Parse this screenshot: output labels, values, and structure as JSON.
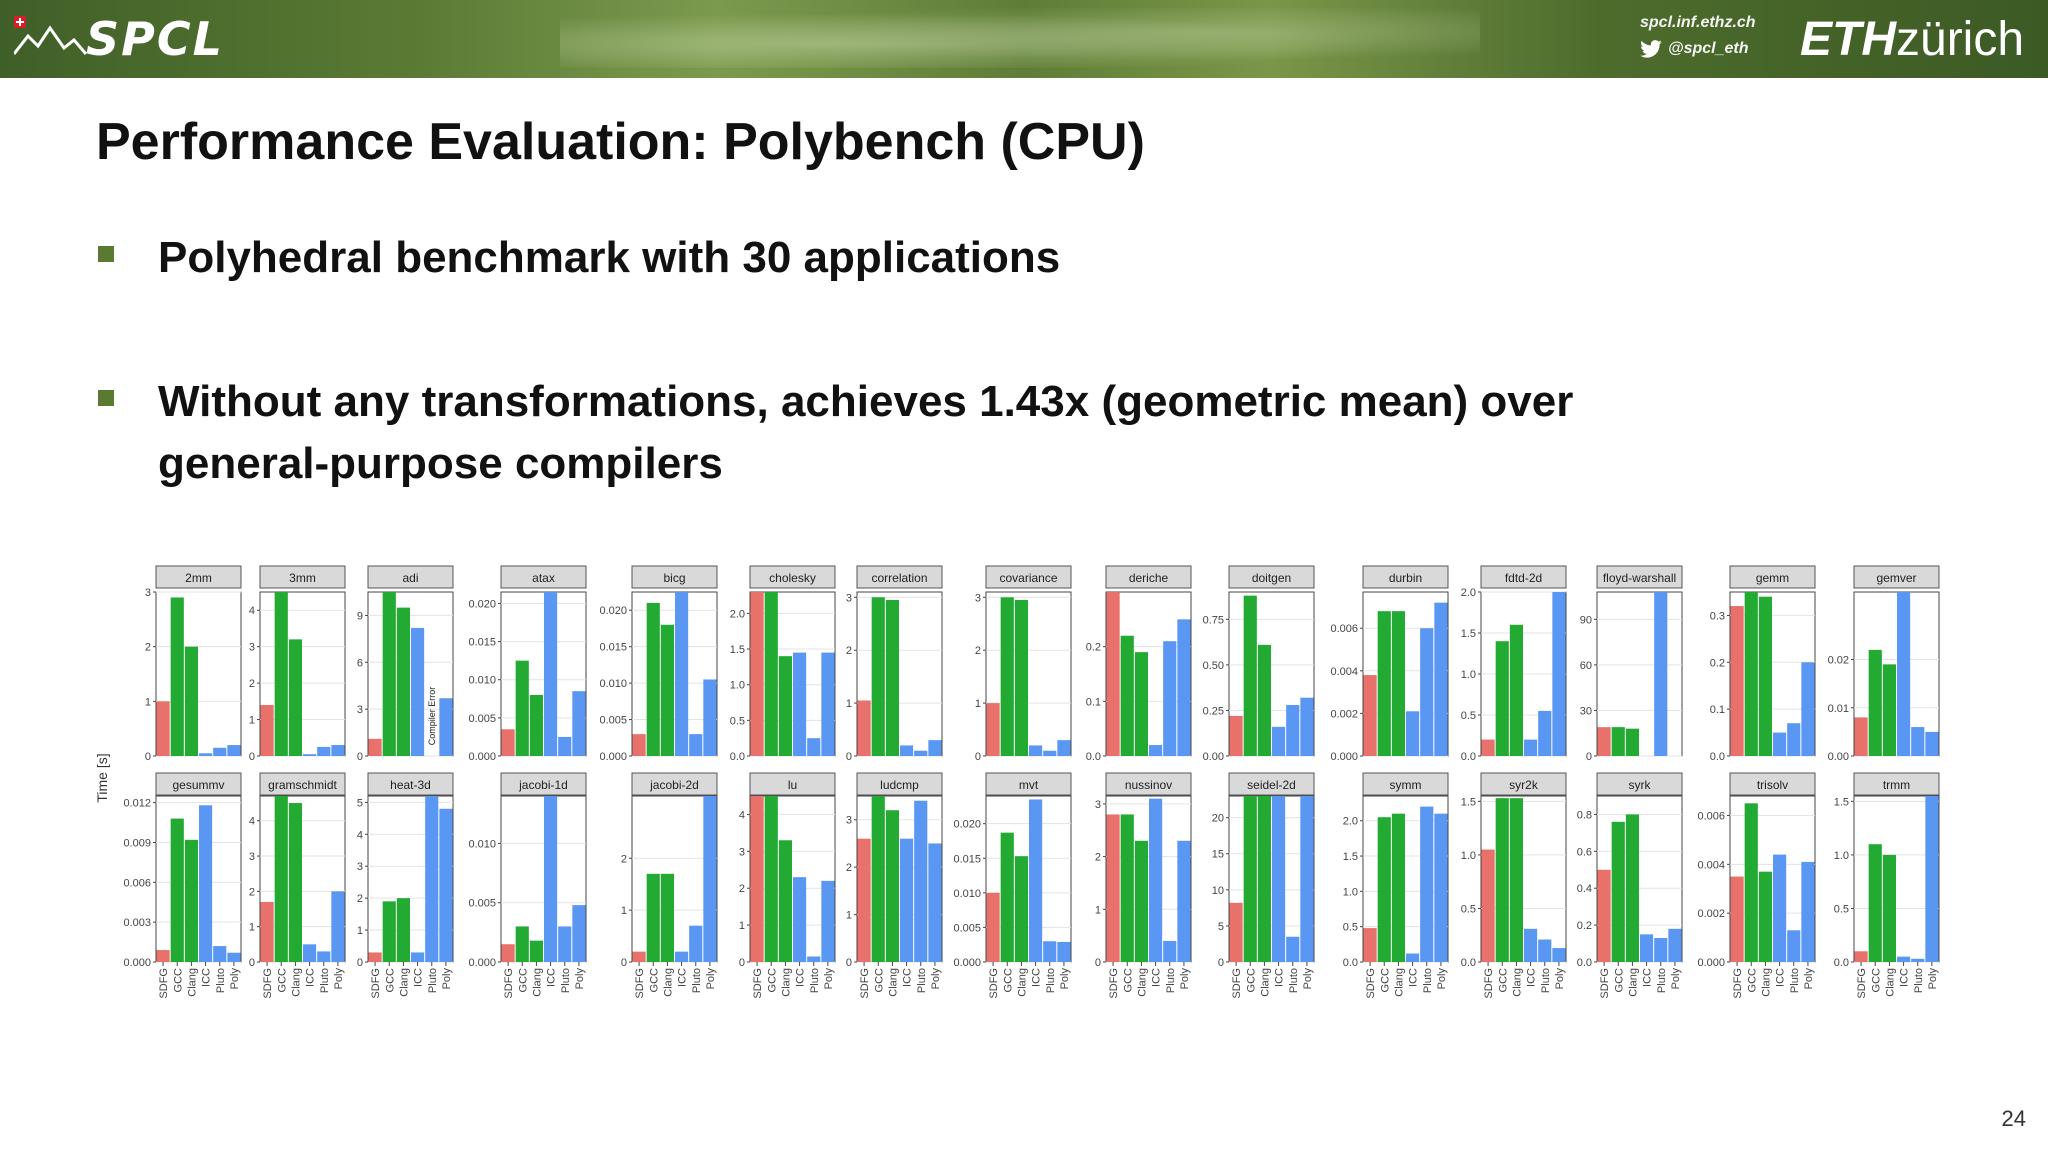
{
  "header": {
    "logo": "SPCL",
    "site_url": "spcl.inf.ethz.ch",
    "twitter": "@spcl_eth",
    "eth_bold": "ETH",
    "eth_light": "zürich"
  },
  "slide": {
    "title": "Performance Evaluation: Polybench (CPU)",
    "bullets": [
      "Polyhedral benchmark with 30 applications",
      "Without any transformations, achieves 1.43x (geometric mean) over",
      "general-purpose compilers"
    ],
    "page_number": "24"
  },
  "chart_data": {
    "type": "bar",
    "ylabel": "Time [s]",
    "categories": [
      "SDFG",
      "GCC",
      "Clang",
      "ICC",
      "Pluto",
      "Poly"
    ],
    "colors": {
      "SDFG": "#e8726b",
      "GCC": "#22aa33",
      "Clang": "#22aa33",
      "ICC": "#5a97f2",
      "Pluto": "#5a97f2",
      "Poly": "#5a97f2"
    },
    "note_text": "Compiler Error",
    "panels": [
      {
        "name": "2mm",
        "ylim": [
          0,
          3
        ],
        "ticks": [
          "0",
          "1",
          "2",
          "3"
        ],
        "values": [
          1.0,
          2.9,
          2.0,
          0.05,
          0.15,
          0.2
        ]
      },
      {
        "name": "3mm",
        "ylim": [
          0,
          4.5
        ],
        "ticks": [
          "0",
          "1",
          "2",
          "3",
          "4"
        ],
        "values": [
          1.4,
          4.6,
          3.2,
          0.05,
          0.25,
          0.3
        ]
      },
      {
        "name": "adi",
        "ylim": [
          0,
          10.5
        ],
        "ticks": [
          "0",
          "3",
          "6",
          "9"
        ],
        "values": [
          1.1,
          10.8,
          9.5,
          8.2,
          null,
          3.7
        ],
        "note_index": 4
      },
      {
        "name": "atax",
        "ylim": [
          0,
          0.0215
        ],
        "ticks": [
          "0.000",
          "0.005",
          "0.010",
          "0.015",
          "0.020"
        ],
        "values": [
          0.0035,
          0.0125,
          0.008,
          0.0215,
          0.0025,
          0.0085
        ]
      },
      {
        "name": "bicg",
        "ylim": [
          0,
          0.0225
        ],
        "ticks": [
          "0.000",
          "0.005",
          "0.010",
          "0.015",
          "0.020"
        ],
        "values": [
          0.003,
          0.021,
          0.018,
          0.0225,
          0.003,
          0.0105
        ]
      },
      {
        "name": "cholesky",
        "ylim": [
          0,
          2.3
        ],
        "ticks": [
          "0.0",
          "0.5",
          "1.0",
          "1.5",
          "2.0"
        ],
        "values": [
          2.3,
          2.3,
          1.4,
          1.45,
          0.25,
          1.45
        ]
      },
      {
        "name": "correlation",
        "ylim": [
          0,
          3.1
        ],
        "ticks": [
          "0",
          "1",
          "2",
          "3"
        ],
        "values": [
          1.05,
          3.0,
          2.95,
          0.2,
          0.1,
          0.3
        ]
      },
      {
        "name": "covariance",
        "ylim": [
          0,
          3.1
        ],
        "ticks": [
          "0",
          "1",
          "2",
          "3"
        ],
        "values": [
          1.0,
          3.0,
          2.95,
          0.2,
          0.1,
          0.3
        ]
      },
      {
        "name": "deriche",
        "ylim": [
          0,
          0.3
        ],
        "ticks": [
          "0.0",
          "0.1",
          "0.2"
        ],
        "values": [
          0.3,
          0.22,
          0.19,
          0.02,
          0.21,
          0.25
        ]
      },
      {
        "name": "doitgen",
        "ylim": [
          0,
          0.9
        ],
        "ticks": [
          "0.00",
          "0.25",
          "0.50",
          "0.75"
        ],
        "values": [
          0.22,
          0.88,
          0.61,
          0.16,
          0.28,
          0.32
        ]
      },
      {
        "name": "durbin",
        "ylim": [
          0,
          0.0077
        ],
        "ticks": [
          "0.000",
          "0.002",
          "0.004",
          "0.006"
        ],
        "values": [
          0.0038,
          0.0068,
          0.0068,
          0.0021,
          0.006,
          0.0072
        ]
      },
      {
        "name": "fdtd-2d",
        "ylim": [
          0,
          2.0
        ],
        "ticks": [
          "0.0",
          "0.5",
          "1.0",
          "1.5",
          "2.0"
        ],
        "values": [
          0.2,
          1.4,
          1.6,
          0.2,
          0.55,
          2.05
        ]
      },
      {
        "name": "floyd-warshall",
        "ylim": [
          0,
          108
        ],
        "ticks": [
          "0",
          "30",
          "60",
          "90"
        ],
        "values": [
          19,
          19,
          18,
          0,
          108,
          0
        ]
      },
      {
        "name": "gemm",
        "ylim": [
          0,
          0.35
        ],
        "ticks": [
          "0.0",
          "0.1",
          "0.2",
          "0.3"
        ],
        "values": [
          0.32,
          0.35,
          0.34,
          0.05,
          0.07,
          0.2
        ]
      },
      {
        "name": "gemver",
        "ylim": [
          0,
          0.034
        ],
        "ticks": [
          "0.00",
          "0.01",
          "0.02"
        ],
        "values": [
          0.008,
          0.022,
          0.019,
          0.034,
          0.006,
          0.005
        ]
      },
      {
        "name": "gesummv",
        "ylim": [
          0,
          0.0125
        ],
        "ticks": [
          "0.000",
          "0.003",
          "0.006",
          "0.009",
          "0.012"
        ],
        "values": [
          0.0009,
          0.0108,
          0.0092,
          0.0118,
          0.0012,
          0.0007
        ]
      },
      {
        "name": "gramschmidt",
        "ylim": [
          0,
          4.7
        ],
        "ticks": [
          "0",
          "1",
          "2",
          "3",
          "4"
        ],
        "values": [
          1.7,
          4.7,
          4.5,
          0.5,
          0.3,
          2.0
        ]
      },
      {
        "name": "heat-3d",
        "ylim": [
          0,
          5.2
        ],
        "ticks": [
          "0",
          "1",
          "2",
          "3",
          "4",
          "5"
        ],
        "values": [
          0.3,
          1.9,
          2.0,
          0.3,
          5.2,
          4.8
        ]
      },
      {
        "name": "jacobi-1d",
        "ylim": [
          0,
          0.014
        ],
        "ticks": [
          "0.000",
          "0.005",
          "0.010"
        ],
        "values": [
          0.0015,
          0.003,
          0.0018,
          0.014,
          0.003,
          0.0048
        ]
      },
      {
        "name": "jacobi-2d",
        "ylim": [
          0,
          3.2
        ],
        "ticks": [
          "0",
          "1",
          "2"
        ],
        "values": [
          0.2,
          1.7,
          1.7,
          0.2,
          0.7,
          3.2
        ]
      },
      {
        "name": "lu",
        "ylim": [
          0,
          4.5
        ],
        "ticks": [
          "0",
          "1",
          "2",
          "3",
          "4"
        ],
        "values": [
          4.5,
          4.5,
          3.3,
          2.3,
          0.15,
          2.2
        ]
      },
      {
        "name": "ludcmp",
        "ylim": [
          0,
          3.5
        ],
        "ticks": [
          "0",
          "1",
          "2",
          "3"
        ],
        "values": [
          2.6,
          3.5,
          3.2,
          2.6,
          3.4,
          2.5
        ]
      },
      {
        "name": "mvt",
        "ylim": [
          0,
          0.024
        ],
        "ticks": [
          "0.000",
          "0.005",
          "0.010",
          "0.015",
          "0.020"
        ],
        "values": [
          0.01,
          0.0187,
          0.0153,
          0.0235,
          0.003,
          0.0029
        ]
      },
      {
        "name": "nussinov",
        "ylim": [
          0,
          3.15
        ],
        "ticks": [
          "0",
          "1",
          "2",
          "3"
        ],
        "values": [
          2.8,
          2.8,
          2.3,
          3.1,
          0.4,
          2.3
        ]
      },
      {
        "name": "seidel-2d",
        "ylim": [
          0,
          23
        ],
        "ticks": [
          "0",
          "5",
          "10",
          "15",
          "20"
        ],
        "values": [
          8.2,
          23,
          23,
          23,
          3.5,
          23
        ]
      },
      {
        "name": "symm",
        "ylim": [
          0,
          2.35
        ],
        "ticks": [
          "0.0",
          "0.5",
          "1.0",
          "1.5",
          "2.0"
        ],
        "values": [
          0.48,
          2.05,
          2.1,
          0.12,
          2.2,
          2.1
        ]
      },
      {
        "name": "syr2k",
        "ylim": [
          0,
          1.55
        ],
        "ticks": [
          "0.0",
          "0.5",
          "1.0",
          "1.5"
        ],
        "values": [
          1.05,
          1.53,
          1.53,
          0.31,
          0.21,
          0.13
        ]
      },
      {
        "name": "syrk",
        "ylim": [
          0,
          0.9
        ],
        "ticks": [
          "0.0",
          "0.2",
          "0.4",
          "0.6",
          "0.8"
        ],
        "values": [
          0.5,
          0.76,
          0.8,
          0.15,
          0.13,
          0.18
        ]
      },
      {
        "name": "trisolv",
        "ylim": [
          0,
          0.0068
        ],
        "ticks": [
          "0.000",
          "0.002",
          "0.004",
          "0.006"
        ],
        "values": [
          0.0035,
          0.0065,
          0.0037,
          0.0044,
          0.0013,
          0.0041
        ]
      },
      {
        "name": "trmm",
        "ylim": [
          0,
          1.55
        ],
        "ticks": [
          "0.0",
          "0.5",
          "1.0",
          "1.5"
        ],
        "values": [
          0.1,
          1.1,
          1.0,
          0.05,
          0.03,
          1.55
        ]
      }
    ]
  }
}
